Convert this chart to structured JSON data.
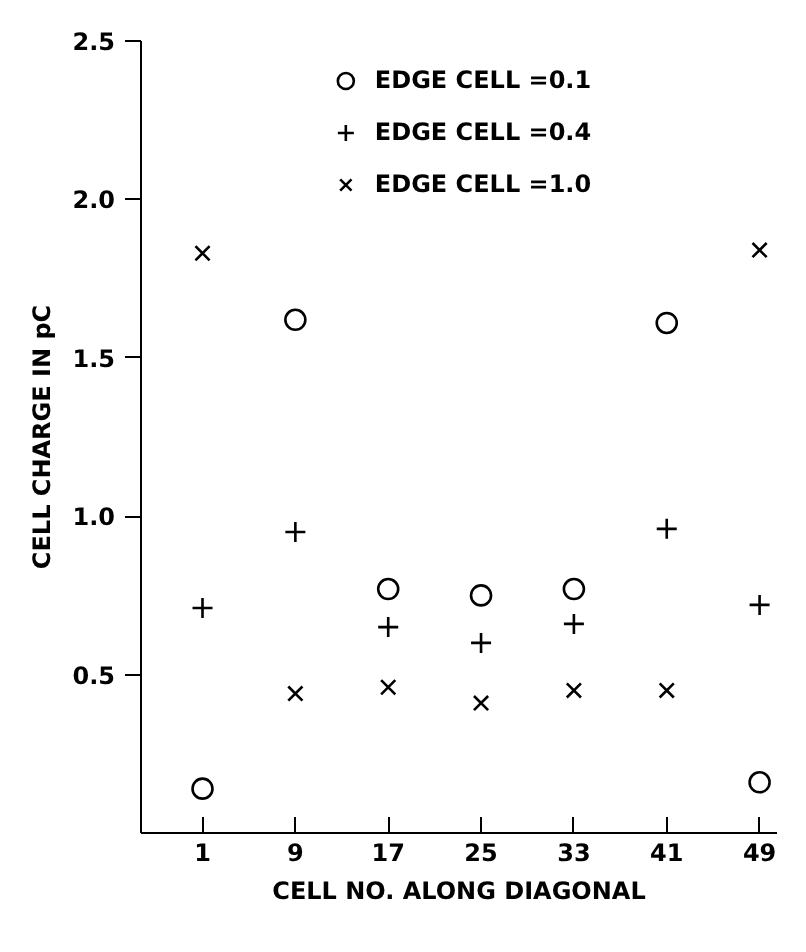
{
  "chart_data": {
    "type": "scatter",
    "xlabel": "CELL NO. ALONG DIAGONAL",
    "ylabel": "CELL CHARGE IN pC",
    "x": [
      1,
      9,
      17,
      25,
      33,
      41,
      49
    ],
    "series": [
      {
        "name": "EDGE CELL =0.1",
        "color": "#000000",
        "marker": "circle",
        "values": [
          0.14,
          1.62,
          0.77,
          0.75,
          0.77,
          1.61,
          0.16
        ]
      },
      {
        "name": "EDGE CELL =0.4",
        "color": "#000000",
        "marker": "cross",
        "values": [
          0.71,
          0.95,
          0.65,
          0.6,
          0.66,
          0.96,
          0.72
        ]
      },
      {
        "name": "EDGE CELL =1.0",
        "color": "#000000",
        "marker": "x",
        "values": [
          1.83,
          0.44,
          0.46,
          0.41,
          0.45,
          0.45,
          1.84
        ]
      }
    ],
    "xlim": [
      -4.3,
      50.5
    ],
    "ylim": [
      0,
      2.5
    ],
    "xticks": [
      1,
      9,
      17,
      25,
      33,
      41,
      49
    ],
    "yticks": [
      {
        "value": 0.5,
        "label": "0.5"
      },
      {
        "value": 1.0,
        "label": "1.0"
      },
      {
        "value": 1.5,
        "label": "1.5"
      },
      {
        "value": 2.0,
        "label": "2.0"
      },
      {
        "value": 2.5,
        "label": "2.5"
      }
    ],
    "grid": false,
    "legend": "top"
  }
}
